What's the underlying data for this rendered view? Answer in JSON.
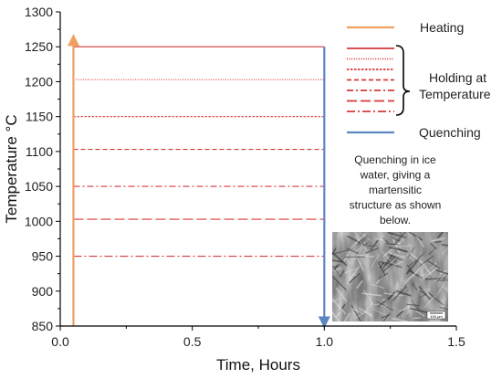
{
  "chart_data": {
    "type": "line",
    "xlabel": "Time, Hours",
    "ylabel": "Temperature °C",
    "xlim": [
      0,
      1.5
    ],
    "ylim": [
      850,
      1300
    ],
    "x_ticks": [
      {
        "value": 0,
        "label": "0.0"
      },
      {
        "value": 0.5,
        "label": "0.5"
      },
      {
        "value": 1.0,
        "label": "1.0"
      },
      {
        "value": 1.5,
        "label": "1.5"
      }
    ],
    "y_ticks": [
      {
        "value": 850,
        "label": "850"
      },
      {
        "value": 900,
        "label": "900"
      },
      {
        "value": 950,
        "label": "950"
      },
      {
        "value": 1000,
        "label": "1000"
      },
      {
        "value": 1050,
        "label": "1050"
      },
      {
        "value": 1100,
        "label": "1100"
      },
      {
        "value": 1150,
        "label": "1150"
      },
      {
        "value": 1200,
        "label": "1200"
      },
      {
        "value": 1250,
        "label": "1250"
      },
      {
        "value": 1300,
        "label": "1300"
      }
    ],
    "heating": {
      "x": 0.05,
      "y_start": 850,
      "y_end": 1265,
      "color": "#f0a060"
    },
    "quenching": {
      "x": 1.0,
      "y_start": 1250,
      "y_end": 850,
      "color": "#5b86c4"
    },
    "holding": {
      "x_start": 0.05,
      "x_end": 1.0,
      "color": "#d63a3a",
      "levels": [
        {
          "temperature": 1250,
          "dash": "solid"
        },
        {
          "temperature": 1203,
          "dash": "dotted"
        },
        {
          "temperature": 1150,
          "dash": "dense-dash"
        },
        {
          "temperature": 1103,
          "dash": "dash"
        },
        {
          "temperature": 1050,
          "dash": "dash-dot"
        },
        {
          "temperature": 1003,
          "dash": "long-dash"
        },
        {
          "temperature": 950,
          "dash": "dash-dot-long"
        }
      ]
    },
    "legend": {
      "placement": "right",
      "heating_label": "Heating",
      "holding_label_line1": "Holding at",
      "holding_label_line2": "Temperature",
      "quenching_label": "Quenching"
    },
    "annotation": {
      "lines": [
        "Quenching  in ice",
        "water, giving a",
        "martensitic",
        "structure as shown",
        "below."
      ]
    },
    "micrograph_scale_label": "100 μm"
  }
}
